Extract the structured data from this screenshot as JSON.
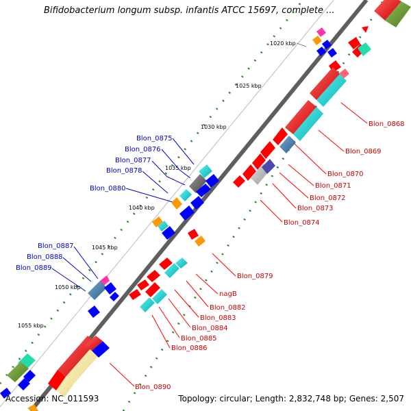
{
  "title": "Bifidobacterium longum subsp. infantis ATCC 15697, complete ...",
  "accession": "Accession: NC_011593",
  "summary": "Topology: circular; Length: 2,832,748 bp; Genes: 2,507",
  "tick_labels": [
    "1020 kbp",
    "1025 kbp",
    "1030 kbp",
    "1035 kbp",
    "1040 kbp",
    "1045 kbp",
    "1050 kbp",
    "1055 kbp"
  ],
  "gene_labels_left": [
    "Blon_0875",
    "Blon_0876",
    "Blon_0877",
    "Blon_0878",
    "Blon_0880",
    "Blon_0887",
    "Blon_0888",
    "Blon_0889"
  ],
  "gene_labels_right": [
    "Blon_0868",
    "Blon_0869",
    "Blon_0870",
    "Blon_0871",
    "Blon_0872",
    "Blon_0873",
    "Blon_0874",
    "Blon_0879",
    "nagB",
    "Blon_0882",
    "Blon_0883",
    "Blon_0884",
    "Blon_0885",
    "Blon_0886",
    "Blon_0890"
  ],
  "colors": {
    "label_left": "#0000cc",
    "label_right": "#cc0000",
    "cds_forward": "#ff0000",
    "cds_reverse": "#0000ff",
    "cog_cyan": "#00cccc",
    "cog_orange": "#ff9900",
    "cog_green": "#669933",
    "cog_teal": "#22ddaa",
    "cog_pink": "#ff33aa",
    "gc_dots": "#228822",
    "backbone": "#8a8a8a"
  }
}
